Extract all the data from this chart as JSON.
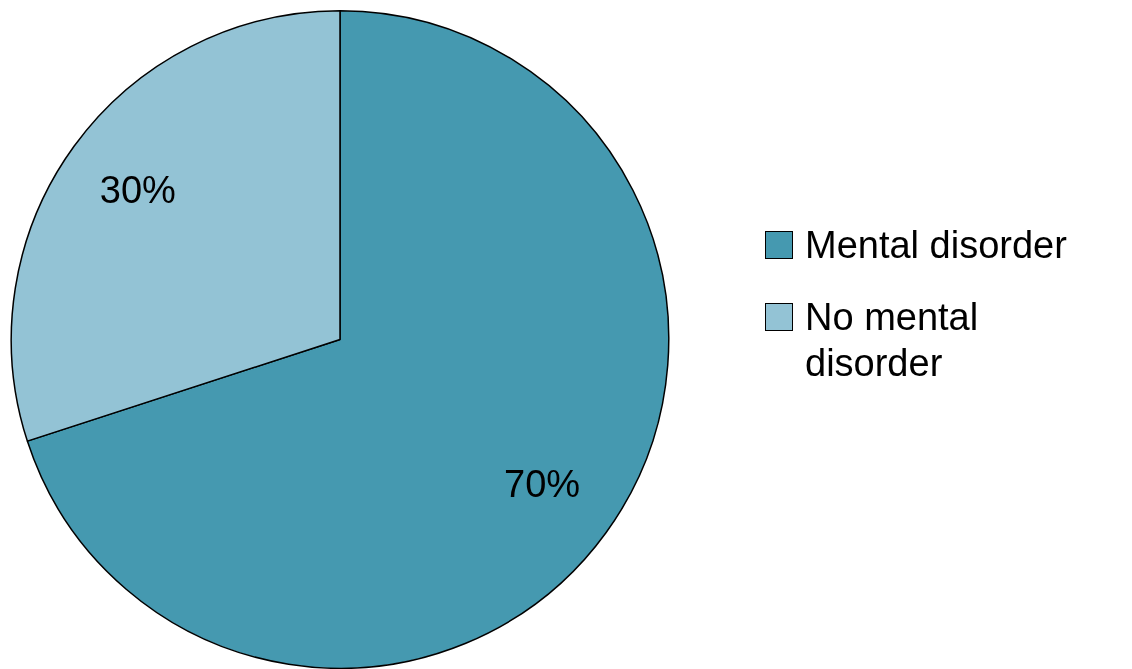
{
  "chart_data": {
    "type": "pie",
    "categories": [
      "Mental disorder",
      "No mental disorder"
    ],
    "values": [
      70,
      30
    ],
    "colors": [
      "#4599b0",
      "#93c3d5"
    ],
    "value_labels": [
      "70%",
      "30%"
    ],
    "legend": "right"
  }
}
